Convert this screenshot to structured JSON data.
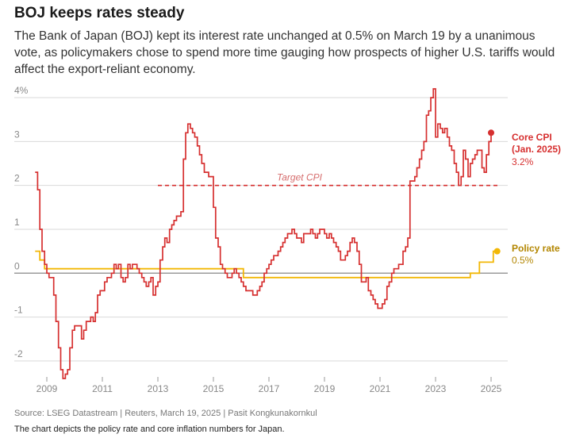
{
  "header": {
    "title": "BOJ keeps rates steady",
    "subtitle": "The Bank of Japan (BOJ) kept its interest rate unchanged at 0.5% on March 19 by a unanimous vote, as policymakers chose to spend more time gauging how prospects of higher U.S. tariffs would affect the export-reliant economy."
  },
  "footer": {
    "source": "Source: LSEG Datastream | Reuters, March 19, 2025 | Pasit Kongkunakornkul",
    "note": "The chart depicts the policy rate and core inflation numbers for Japan."
  },
  "chart_data": {
    "type": "line",
    "title": "",
    "xlabel": "",
    "ylabel": "",
    "xlim": [
      2008.4,
      2025.6
    ],
    "ylim": [
      -2.4,
      4.2
    ],
    "yticks": [
      {
        "value": 4,
        "label": "4%"
      },
      {
        "value": 3,
        "label": "3"
      },
      {
        "value": 2,
        "label": "2"
      },
      {
        "value": 1,
        "label": "1"
      },
      {
        "value": 0,
        "label": "0"
      },
      {
        "value": -1,
        "label": "-1"
      },
      {
        "value": -2,
        "label": "-2"
      }
    ],
    "xticks": [
      {
        "value": 2009,
        "label": "2009"
      },
      {
        "value": 2011,
        "label": "2011"
      },
      {
        "value": 2013,
        "label": "2013"
      },
      {
        "value": 2015,
        "label": "2015"
      },
      {
        "value": 2017,
        "label": "2017"
      },
      {
        "value": 2019,
        "label": "2019"
      },
      {
        "value": 2021,
        "label": "2021"
      },
      {
        "value": 2023,
        "label": "2023"
      },
      {
        "value": 2025,
        "label": "2025"
      }
    ],
    "grid": true,
    "colors": {
      "core_cpi": "#d62f2f",
      "policy_rate": "#f2b705",
      "grid": "#d9d9d9",
      "zero_line": "#888888"
    },
    "target": {
      "label": "Target CPI",
      "value": 2.0,
      "x_start": 2013.0,
      "x_end": 2025.25
    },
    "annotations": {
      "core_cpi_label": [
        "Core CPI",
        "(Jan. 2025)"
      ],
      "core_cpi_value": "3.2%",
      "policy_label": "Policy rate",
      "policy_value": "0.5%"
    },
    "series": [
      {
        "key": "core_cpi",
        "step": true,
        "x": [
          2008.58,
          2008.67,
          2008.75,
          2008.83,
          2008.92,
          2009.0,
          2009.08,
          2009.17,
          2009.25,
          2009.33,
          2009.42,
          2009.5,
          2009.58,
          2009.67,
          2009.75,
          2009.83,
          2009.92,
          2010.0,
          2010.08,
          2010.17,
          2010.25,
          2010.33,
          2010.42,
          2010.5,
          2010.58,
          2010.67,
          2010.75,
          2010.83,
          2010.92,
          2011.0,
          2011.08,
          2011.17,
          2011.25,
          2011.33,
          2011.42,
          2011.5,
          2011.58,
          2011.67,
          2011.75,
          2011.83,
          2011.92,
          2012.0,
          2012.08,
          2012.17,
          2012.25,
          2012.33,
          2012.42,
          2012.5,
          2012.58,
          2012.67,
          2012.75,
          2012.83,
          2012.92,
          2013.0,
          2013.08,
          2013.17,
          2013.25,
          2013.33,
          2013.42,
          2013.5,
          2013.58,
          2013.67,
          2013.75,
          2013.83,
          2013.92,
          2014.0,
          2014.08,
          2014.17,
          2014.25,
          2014.33,
          2014.42,
          2014.5,
          2014.58,
          2014.67,
          2014.75,
          2014.83,
          2014.92,
          2015.0,
          2015.08,
          2015.17,
          2015.25,
          2015.33,
          2015.42,
          2015.5,
          2015.58,
          2015.67,
          2015.75,
          2015.83,
          2015.92,
          2016.0,
          2016.08,
          2016.17,
          2016.25,
          2016.33,
          2016.42,
          2016.5,
          2016.58,
          2016.67,
          2016.75,
          2016.83,
          2016.92,
          2017.0,
          2017.08,
          2017.17,
          2017.25,
          2017.33,
          2017.42,
          2017.5,
          2017.58,
          2017.67,
          2017.75,
          2017.83,
          2017.92,
          2018.0,
          2018.08,
          2018.17,
          2018.25,
          2018.33,
          2018.42,
          2018.5,
          2018.58,
          2018.67,
          2018.75,
          2018.83,
          2018.92,
          2019.0,
          2019.08,
          2019.17,
          2019.25,
          2019.33,
          2019.42,
          2019.5,
          2019.58,
          2019.67,
          2019.75,
          2019.83,
          2019.92,
          2020.0,
          2020.08,
          2020.17,
          2020.25,
          2020.33,
          2020.42,
          2020.5,
          2020.58,
          2020.67,
          2020.75,
          2020.83,
          2020.92,
          2021.0,
          2021.08,
          2021.17,
          2021.25,
          2021.33,
          2021.42,
          2021.5,
          2021.58,
          2021.67,
          2021.75,
          2021.83,
          2021.92,
          2022.0,
          2022.08,
          2022.17,
          2022.25,
          2022.33,
          2022.42,
          2022.5,
          2022.58,
          2022.67,
          2022.75,
          2022.83,
          2022.92,
          2023.0,
          2023.08,
          2023.17,
          2023.25,
          2023.33,
          2023.42,
          2023.5,
          2023.58,
          2023.67,
          2023.75,
          2023.83,
          2023.92,
          2024.0,
          2024.08,
          2024.17,
          2024.25,
          2024.33,
          2024.42,
          2024.5,
          2024.58,
          2024.67,
          2024.75,
          2024.83,
          2024.92,
          2025.0
        ],
        "values": [
          2.3,
          1.9,
          1.0,
          0.5,
          0.2,
          0.0,
          -0.1,
          -0.1,
          -0.5,
          -1.1,
          -1.7,
          -2.2,
          -2.4,
          -2.3,
          -2.2,
          -1.7,
          -1.3,
          -1.2,
          -1.2,
          -1.2,
          -1.5,
          -1.3,
          -1.1,
          -1.1,
          -1.0,
          -1.1,
          -0.9,
          -0.5,
          -0.4,
          -0.4,
          -0.2,
          -0.1,
          -0.1,
          0.0,
          0.2,
          0.1,
          0.2,
          -0.1,
          -0.2,
          -0.1,
          0.2,
          0.1,
          0.2,
          0.2,
          0.1,
          0.0,
          -0.1,
          -0.2,
          -0.3,
          -0.2,
          -0.1,
          -0.5,
          -0.3,
          -0.2,
          0.3,
          0.6,
          0.8,
          0.7,
          1.0,
          1.1,
          1.2,
          1.3,
          1.3,
          1.4,
          2.6,
          3.2,
          3.4,
          3.3,
          3.2,
          3.1,
          2.9,
          2.7,
          2.5,
          2.3,
          2.3,
          2.2,
          2.2,
          1.5,
          0.8,
          0.6,
          0.2,
          0.1,
          0.0,
          -0.1,
          -0.1,
          0.0,
          0.1,
          0.0,
          -0.1,
          -0.2,
          -0.3,
          -0.4,
          -0.4,
          -0.4,
          -0.5,
          -0.5,
          -0.4,
          -0.3,
          -0.2,
          0.0,
          0.1,
          0.2,
          0.3,
          0.4,
          0.4,
          0.5,
          0.6,
          0.7,
          0.8,
          0.9,
          0.9,
          1.0,
          0.9,
          0.8,
          0.8,
          0.7,
          0.9,
          0.9,
          0.9,
          1.0,
          0.9,
          0.8,
          0.9,
          1.0,
          1.0,
          0.9,
          0.8,
          0.9,
          0.8,
          0.7,
          0.6,
          0.5,
          0.3,
          0.3,
          0.4,
          0.5,
          0.7,
          0.8,
          0.7,
          0.5,
          0.2,
          -0.2,
          -0.2,
          -0.1,
          -0.4,
          -0.5,
          -0.6,
          -0.7,
          -0.8,
          -0.8,
          -0.7,
          -0.6,
          -0.3,
          -0.2,
          0.0,
          0.1,
          0.1,
          0.2,
          0.2,
          0.5,
          0.6,
          0.8,
          2.1,
          2.1,
          2.2,
          2.4,
          2.6,
          2.8,
          3.0,
          3.6,
          3.7,
          4.0,
          4.2,
          3.1,
          3.4,
          3.3,
          3.2,
          3.3,
          3.1,
          2.9,
          2.8,
          2.5,
          2.3,
          2.0,
          2.2,
          2.8,
          2.6,
          2.2,
          2.5,
          2.6,
          2.7,
          2.8,
          2.8,
          2.4,
          2.3,
          2.7,
          3.0,
          3.2
        ]
      },
      {
        "key": "policy_rate",
        "step": true,
        "x": [
          2008.58,
          2008.75,
          2008.92,
          2009.0,
          2010.83,
          2013.25,
          2016.08,
          2024.25,
          2024.58,
          2025.08,
          2025.22
        ],
        "values": [
          0.5,
          0.3,
          0.1,
          0.1,
          0.1,
          0.1,
          -0.1,
          0.0,
          0.25,
          0.5,
          0.5
        ]
      }
    ]
  }
}
